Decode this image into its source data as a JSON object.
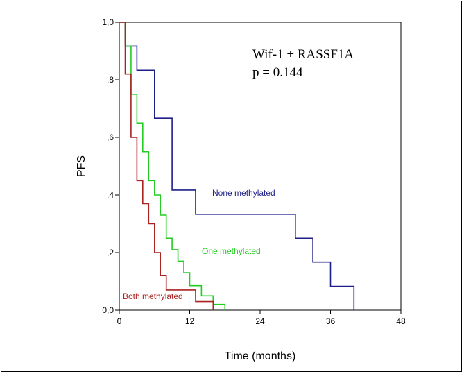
{
  "chart_data": {
    "type": "line",
    "step": true,
    "xlabel": "Time (months)",
    "ylabel": "PFS",
    "xlim": [
      0,
      48
    ],
    "ylim": [
      0,
      1
    ],
    "x_ticks": [
      0,
      12,
      24,
      36,
      48
    ],
    "x_tick_labels": [
      "0",
      "12",
      "24",
      "36",
      "48"
    ],
    "y_ticks": [
      0,
      0.2,
      0.4,
      0.6,
      0.8,
      1.0
    ],
    "y_tick_labels": [
      "0,0",
      ",2",
      ",4",
      ",6",
      ",8",
      "1,0"
    ],
    "grid": false,
    "annotation_lines": [
      "Wif-1 + RASSF1A",
      "p = 0.144"
    ],
    "series": [
      {
        "name": "None methylated",
        "color": "#1f1f8a",
        "points": [
          [
            0,
            1.0
          ],
          [
            1,
            1.0
          ],
          [
            1,
            0.917
          ],
          [
            3,
            0.917
          ],
          [
            3,
            0.833
          ],
          [
            6,
            0.833
          ],
          [
            6,
            0.667
          ],
          [
            9,
            0.667
          ],
          [
            9,
            0.417
          ],
          [
            13,
            0.417
          ],
          [
            13,
            0.333
          ],
          [
            30,
            0.333
          ],
          [
            30,
            0.25
          ],
          [
            33,
            0.25
          ],
          [
            33,
            0.167
          ],
          [
            36,
            0.167
          ],
          [
            36,
            0.083
          ],
          [
            40,
            0.083
          ],
          [
            40,
            0.0
          ]
        ]
      },
      {
        "name": "One methylated",
        "color": "#22cc22",
        "points": [
          [
            0,
            1.0
          ],
          [
            1,
            1.0
          ],
          [
            1,
            0.917
          ],
          [
            2,
            0.917
          ],
          [
            2,
            0.75
          ],
          [
            3,
            0.75
          ],
          [
            3,
            0.65
          ],
          [
            4,
            0.65
          ],
          [
            4,
            0.55
          ],
          [
            5,
            0.55
          ],
          [
            5,
            0.45
          ],
          [
            6,
            0.45
          ],
          [
            6,
            0.4
          ],
          [
            7,
            0.4
          ],
          [
            7,
            0.33
          ],
          [
            8,
            0.33
          ],
          [
            8,
            0.25
          ],
          [
            9,
            0.25
          ],
          [
            9,
            0.21
          ],
          [
            10,
            0.21
          ],
          [
            10,
            0.17
          ],
          [
            11,
            0.17
          ],
          [
            11,
            0.13
          ],
          [
            12,
            0.13
          ],
          [
            12,
            0.085
          ],
          [
            14,
            0.085
          ],
          [
            14,
            0.05
          ],
          [
            16,
            0.05
          ],
          [
            16,
            0.02
          ],
          [
            18,
            0.02
          ],
          [
            18,
            0.0
          ]
        ]
      },
      {
        "name": "Both methylated",
        "color": "#aa2222",
        "points": [
          [
            0,
            1.0
          ],
          [
            1,
            1.0
          ],
          [
            1,
            0.82
          ],
          [
            2,
            0.82
          ],
          [
            2,
            0.6
          ],
          [
            3,
            0.6
          ],
          [
            3,
            0.45
          ],
          [
            4,
            0.45
          ],
          [
            4,
            0.37
          ],
          [
            5,
            0.37
          ],
          [
            5,
            0.3
          ],
          [
            6,
            0.3
          ],
          [
            6,
            0.2
          ],
          [
            7,
            0.2
          ],
          [
            7,
            0.12
          ],
          [
            8,
            0.12
          ],
          [
            8,
            0.07
          ],
          [
            13,
            0.07
          ],
          [
            13,
            0.03
          ],
          [
            16,
            0.03
          ],
          [
            16,
            0.0
          ]
        ]
      }
    ]
  }
}
